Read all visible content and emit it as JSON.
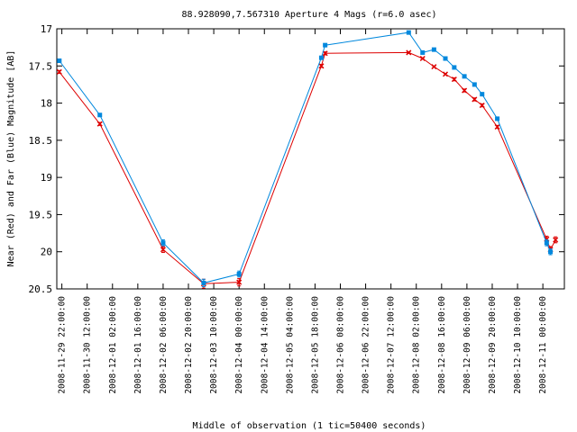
{
  "chart_data": {
    "type": "line",
    "title": "88.928090,7.567310   Aperture 4 Mags (r=6.0 asec)",
    "xlabel": "Middle of observation (1 tic=50400 seconds)",
    "ylabel": "Near (Red) and Far (Blue) Magnitude [AB]",
    "y_inverted": true,
    "ylim": [
      20.5,
      17.0
    ],
    "y_ticks": [
      "17",
      "17.5",
      "18",
      "18.5",
      "19",
      "19.5",
      "20",
      "20.5"
    ],
    "x_ticks": [
      "2008-11-29 22:00:00",
      "2008-11-30 12:00:00",
      "2008-12-01 02:00:00",
      "2008-12-01 16:00:00",
      "2008-12-02 06:00:00",
      "2008-12-02 20:00:00",
      "2008-12-03 10:00:00",
      "2008-12-04 00:00:00",
      "2008-12-04 14:00:00",
      "2008-12-05 04:00:00",
      "2008-12-05 18:00:00",
      "2008-12-06 08:00:00",
      "2008-12-06 22:00:00",
      "2008-12-07 12:00:00",
      "2008-12-08 02:00:00",
      "2008-12-08 16:00:00",
      "2008-12-09 06:00:00",
      "2008-12-09 20:00:00",
      "2008-12-10 10:00:00",
      "2008-12-11 00:00:00"
    ],
    "x_unit_note": "x values are in tic units (1 tic = 50400 seconds), 0 = 2008-11-29 22:00:00",
    "grid": false,
    "legend": false,
    "series": [
      {
        "name": "Near (Red)",
        "color": "#dd0000",
        "points": [
          {
            "x": -0.1,
            "y": 17.58,
            "err": 0.02
          },
          {
            "x": 1.5,
            "y": 18.28,
            "err": 0.02
          },
          {
            "x": 4.0,
            "y": 19.97,
            "err": 0.04
          },
          {
            "x": 5.6,
            "y": 20.43,
            "err": 0.06
          },
          {
            "x": 7.0,
            "y": 20.41,
            "err": 0.05
          },
          {
            "x": 10.25,
            "y": 17.5,
            "err": 0.02
          },
          {
            "x": 10.4,
            "y": 17.33,
            "err": 0.02
          },
          {
            "x": 13.7,
            "y": 17.32,
            "err": 0.01
          },
          {
            "x": 14.25,
            "y": 17.4,
            "err": 0.01
          },
          {
            "x": 14.7,
            "y": 17.51,
            "err": 0.01
          },
          {
            "x": 15.15,
            "y": 17.61,
            "err": 0.01
          },
          {
            "x": 15.5,
            "y": 17.68,
            "err": 0.02
          },
          {
            "x": 15.9,
            "y": 17.83,
            "err": 0.02
          },
          {
            "x": 16.3,
            "y": 17.95,
            "err": 0.02
          },
          {
            "x": 16.6,
            "y": 18.03,
            "err": 0.02
          },
          {
            "x": 17.2,
            "y": 18.32,
            "err": 0.02
          },
          {
            "x": 19.15,
            "y": 19.83,
            "err": 0.04
          },
          {
            "x": 19.3,
            "y": 19.97,
            "err": 0.04
          },
          {
            "x": 19.5,
            "y": 19.84,
            "err": 0.04
          }
        ]
      },
      {
        "name": "Far (Blue)",
        "color": "#0088dd",
        "points": [
          {
            "x": -0.1,
            "y": 17.43,
            "err": 0.02
          },
          {
            "x": 1.5,
            "y": 18.16,
            "err": 0.02
          },
          {
            "x": 4.0,
            "y": 19.88,
            "err": 0.04
          },
          {
            "x": 5.6,
            "y": 20.42,
            "err": 0.05
          },
          {
            "x": 7.0,
            "y": 20.3,
            "err": 0.04
          },
          {
            "x": 10.25,
            "y": 17.39,
            "err": 0.02
          },
          {
            "x": 10.4,
            "y": 17.22,
            "err": 0.02
          },
          {
            "x": 13.7,
            "y": 17.05,
            "err": 0.01
          },
          {
            "x": 14.25,
            "y": 17.32,
            "err": 0.01
          },
          {
            "x": 14.7,
            "y": 17.28,
            "err": 0.01
          },
          {
            "x": 15.15,
            "y": 17.4,
            "err": 0.01
          },
          {
            "x": 15.5,
            "y": 17.52,
            "err": 0.02
          },
          {
            "x": 15.9,
            "y": 17.64,
            "err": 0.02
          },
          {
            "x": 16.3,
            "y": 17.75,
            "err": 0.02
          },
          {
            "x": 16.6,
            "y": 17.88,
            "err": 0.02
          },
          {
            "x": 17.2,
            "y": 18.21,
            "err": 0.02
          },
          {
            "x": 19.15,
            "y": 19.88,
            "err": 0.04
          },
          {
            "x": 19.3,
            "y": 20.0,
            "err": 0.04
          }
        ]
      }
    ]
  }
}
